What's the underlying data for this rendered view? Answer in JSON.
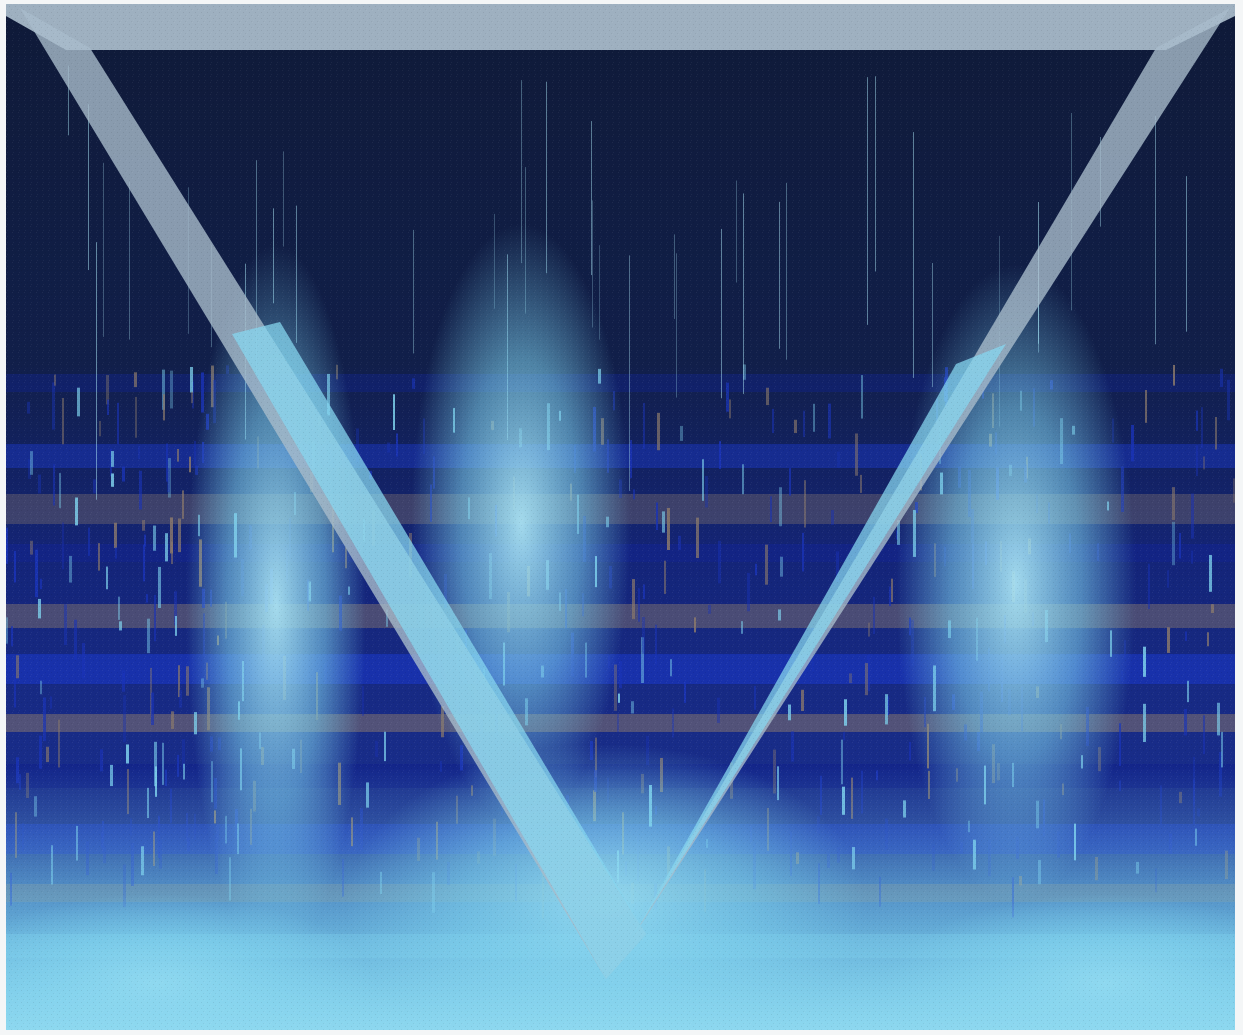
{
  "image": {
    "kind": "textile-artwork",
    "description_visible_text": "",
    "palette": {
      "night": "#0f1b3d",
      "indigo": "#12238a",
      "cobalt": "#1a34b8",
      "sky": "#7fd3ee",
      "pale_sky": "#a9e2f3",
      "triangle": "#9fb3c4",
      "triangle_light": "#b3c3cf",
      "rust": "#8c7a6c",
      "bottom_glow": "#6cc8e8"
    },
    "motifs": [
      "inverted-triangle",
      "spectrogram-bands",
      "vertical-streaks",
      "glow-peaks"
    ]
  }
}
